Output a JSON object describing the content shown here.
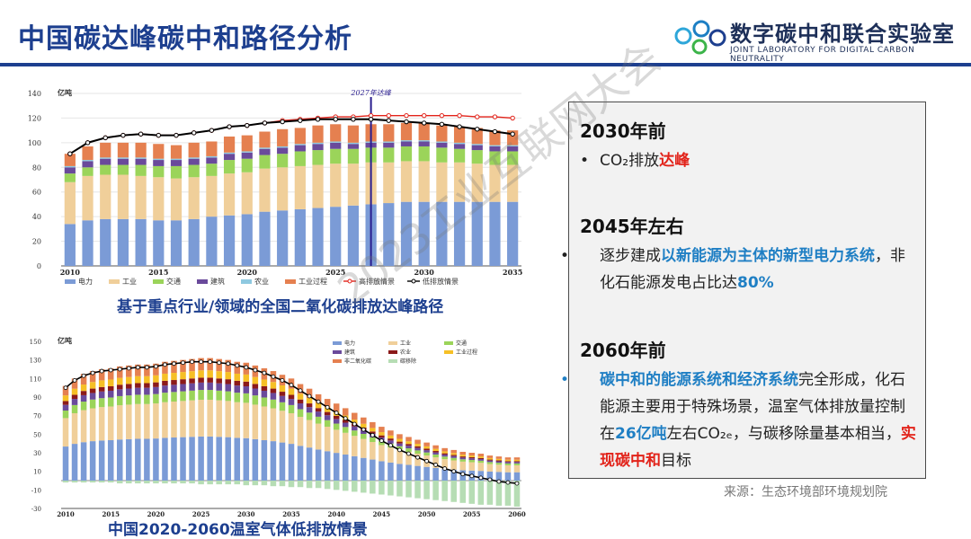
{
  "header": {
    "title": "中国碳达峰碳中和路径分析"
  },
  "logo": {
    "cn": "数字碳中和联合实验室",
    "en": "JOINT LABORATORY FOR DIGITAL CARBON NEUTRALITY"
  },
  "chart_data": [
    {
      "type": "bar",
      "stacked": true,
      "unit": "亿吨",
      "ylim": [
        0,
        140
      ],
      "yticks": [
        0,
        20,
        40,
        60,
        80,
        100,
        120,
        140
      ],
      "xtick_labels": [
        "2010",
        "2015",
        "2020",
        "2025",
        "2030",
        "2035"
      ],
      "annotation": "2027年达峰",
      "peak_year": 2027,
      "categories": [
        2010,
        2011,
        2012,
        2013,
        2014,
        2015,
        2016,
        2017,
        2018,
        2019,
        2020,
        2021,
        2022,
        2023,
        2024,
        2025,
        2026,
        2027,
        2028,
        2029,
        2030,
        2031,
        2032,
        2033,
        2034,
        2035
      ],
      "series": [
        {
          "name": "电力",
          "color": "#7b9bd6",
          "values": [
            34,
            37,
            38,
            38,
            38,
            37,
            37,
            38,
            40,
            41,
            42,
            44,
            45,
            46,
            47,
            48,
            49,
            50,
            51,
            52,
            52,
            52,
            52,
            52,
            52,
            52
          ]
        },
        {
          "name": "工业",
          "color": "#f0cf9a",
          "values": [
            34,
            36,
            36,
            36,
            35,
            35,
            34,
            34,
            33,
            34,
            34,
            35,
            35,
            35,
            35,
            35,
            34,
            34,
            33,
            33,
            33,
            32,
            32,
            31,
            30,
            30
          ]
        },
        {
          "name": "交通",
          "color": "#9bd45a",
          "values": [
            7,
            7,
            8,
            8,
            9,
            9,
            10,
            10,
            10,
            11,
            11,
            11,
            11,
            12,
            12,
            12,
            12,
            12,
            12,
            12,
            12,
            12,
            11,
            11,
            11,
            11
          ]
        },
        {
          "name": "建筑",
          "color": "#6a4a9b",
          "values": [
            5,
            5,
            5,
            5,
            5,
            5,
            5,
            5,
            5,
            5,
            5,
            5,
            5,
            5,
            5,
            5,
            4,
            4,
            4,
            4,
            4,
            4,
            4,
            4,
            4,
            4
          ]
        },
        {
          "name": "农业",
          "color": "#8ec9e0",
          "values": [
            1,
            1,
            1,
            1,
            1,
            1,
            1,
            1,
            1,
            1,
            1,
            1,
            1,
            1,
            1,
            1,
            1,
            1,
            1,
            1,
            1,
            1,
            1,
            1,
            1,
            1
          ]
        },
        {
          "name": "工业过程",
          "color": "#e58050",
          "values": [
            10,
            11,
            12,
            12,
            12,
            12,
            11,
            12,
            12,
            13,
            13,
            13,
            14,
            13,
            14,
            14,
            14,
            14,
            14,
            14,
            14,
            13,
            13,
            13,
            12,
            12
          ]
        }
      ],
      "lines": [
        {
          "name": "高排放情景",
          "color": "#e2231a",
          "values": [
            91,
            100,
            104,
            106,
            107,
            106,
            106,
            108,
            110,
            113,
            114,
            116,
            118,
            119,
            120,
            121,
            121,
            122,
            122,
            122,
            122,
            122,
            122,
            121,
            121,
            120
          ]
        },
        {
          "name": "低排放情景",
          "color": "#000000",
          "values": [
            91,
            100,
            104,
            106,
            107,
            106,
            106,
            108,
            110,
            113,
            114,
            116,
            117,
            118,
            119,
            119,
            119,
            119,
            118,
            117,
            116,
            115,
            113,
            111,
            109,
            107
          ]
        }
      ],
      "caption": "基于重点行业/领域的全国二氧化碳排放达峰路径"
    },
    {
      "type": "bar",
      "stacked": true,
      "unit": "亿吨",
      "ylim": [
        -30,
        150
      ],
      "yticks": [
        -30,
        -10,
        10,
        30,
        50,
        70,
        90,
        110,
        130,
        150
      ],
      "xtick_labels": [
        "2010",
        "2015",
        "2020",
        "2025",
        "2030",
        "2035",
        "2040",
        "2045",
        "2050",
        "2055",
        "2060"
      ],
      "legend": [
        "电力",
        "工业",
        "交通",
        "建筑",
        "农业",
        "工业过程",
        "非二氧化碳",
        "碳移除"
      ],
      "series_colors": [
        "#7b9bd6",
        "#f0cf9a",
        "#9bd45a",
        "#6a4a9b",
        "#8b1a1a",
        "#f6c026",
        "#e58050",
        "#b6ddb4"
      ],
      "total": [
        100,
        108,
        113,
        116,
        118,
        119,
        120,
        121,
        122,
        122,
        123,
        125,
        126,
        127,
        128,
        128,
        128,
        127,
        126,
        124,
        122,
        119,
        116,
        112,
        108,
        103,
        97,
        91,
        85,
        79,
        73,
        67,
        61,
        55,
        49,
        43,
        38,
        33,
        29,
        25,
        21,
        17,
        13,
        10,
        7,
        5,
        3,
        1,
        -1,
        -2,
        -3
      ],
      "removal": [
        -2,
        -2,
        -2,
        -2,
        -2,
        -2,
        -3,
        -3,
        -3,
        -3,
        -3,
        -3,
        -3,
        -3,
        -3,
        -4,
        -4,
        -4,
        -4,
        -4,
        -5,
        -5,
        -5,
        -6,
        -6,
        -7,
        -7,
        -8,
        -8,
        -9,
        -10,
        -11,
        -12,
        -13,
        -14,
        -15,
        -16,
        -17,
        -18,
        -19,
        -20,
        -21,
        -22,
        -23,
        -24,
        -25,
        -26,
        -26,
        -27,
        -27,
        -28
      ],
      "caption": "中国2020-2060温室气体低排放情景"
    }
  ],
  "panel": {
    "h1": "2030年前",
    "p1": {
      "a": "CO₂排放",
      "b": "达峰"
    },
    "h2": "2045年左右",
    "p2": {
      "a": "逐步建成",
      "b": "以新能源为主体的新型电力系统",
      "c": "，非化石能源发电占比达",
      "d": "80%"
    },
    "h3": "2060年前",
    "p3": {
      "a": "碳中和的能源系统和经济系统",
      "b": "完全形成，化石能源主要用于特殊场景，温室气体排放量控制在",
      "c": "26亿吨",
      "d": "左右CO₂ₑ，与碳移除量基本相当，",
      "e": "实现碳中和",
      "f": "目标"
    },
    "bullet": "•"
  },
  "source": "来源：生态环境部环境规划院",
  "watermark": "2023工业互联网大会"
}
